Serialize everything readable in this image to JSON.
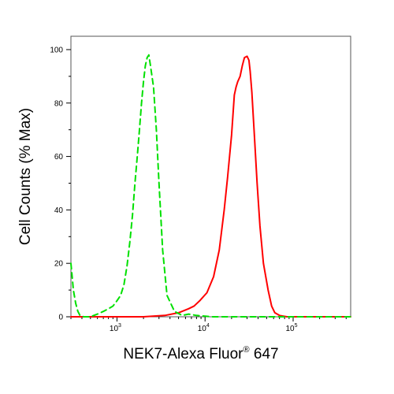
{
  "chart_data": {
    "type": "line",
    "title": "",
    "xlabel": "NEK7-Alexa Fluor",
    "xlabel_superscript": "®",
    "xlabel_suffix": " 647",
    "ylabel": "Cell Counts (% Max)",
    "x_scale": "log",
    "xlim": [
      300,
      450000
    ],
    "ylim": [
      0,
      105
    ],
    "x_ticks": [
      {
        "value": 1000,
        "base": "10",
        "exp": "3"
      },
      {
        "value": 10000,
        "base": "10",
        "exp": "4"
      },
      {
        "value": 100000,
        "base": "10",
        "exp": "5"
      }
    ],
    "y_ticks": [
      {
        "value": 0,
        "label": "0"
      },
      {
        "value": 20,
        "label": "20"
      },
      {
        "value": 40,
        "label": "40"
      },
      {
        "value": 60,
        "label": "60"
      },
      {
        "value": 80,
        "label": "80"
      },
      {
        "value": 100,
        "label": "100"
      }
    ],
    "grid": false,
    "series": [
      {
        "color": "#ff0000",
        "style": "solid",
        "x": [
          300,
          2000,
          3500,
          5000,
          6500,
          7500,
          8700,
          10500,
          12500,
          14500,
          16500,
          18000,
          20000,
          21500,
          22500,
          23500,
          25000,
          26500,
          28000,
          30000,
          31500,
          32500,
          34000,
          36000,
          39000,
          42000,
          46000,
          52000,
          57000,
          62000,
          70000,
          85000,
          110000,
          150000,
          450000
        ],
        "y": [
          0,
          0,
          0.5,
          1.5,
          3,
          4,
          6,
          9,
          15,
          25,
          40,
          52,
          68,
          83,
          86,
          88,
          90,
          94,
          97,
          97.5,
          96,
          92,
          84,
          70,
          50,
          34,
          20,
          10,
          4,
          1.5,
          0.5,
          0,
          0,
          0,
          0
        ]
      },
      {
        "color": "#00e000",
        "style": "dashed",
        "x": [
          300,
          320,
          340,
          360,
          380,
          420,
          500,
          600,
          700,
          800,
          900,
          1000,
          1100,
          1200,
          1300,
          1400,
          1500,
          1600,
          1700,
          1800,
          1900,
          2000,
          2100,
          2200,
          2300,
          2400,
          2600,
          2800,
          3000,
          3300,
          3700,
          4500,
          5500,
          6500,
          8000,
          12000,
          20000,
          450000
        ],
        "y": [
          20,
          10,
          5,
          2,
          0.5,
          0,
          0,
          1,
          2,
          3,
          4,
          6,
          8,
          12,
          19,
          28,
          38,
          50,
          60,
          70,
          80,
          88,
          94,
          97,
          98,
          94,
          86,
          70,
          50,
          25,
          8,
          2,
          0.5,
          1,
          0.5,
          0,
          0,
          0
        ]
      }
    ]
  }
}
